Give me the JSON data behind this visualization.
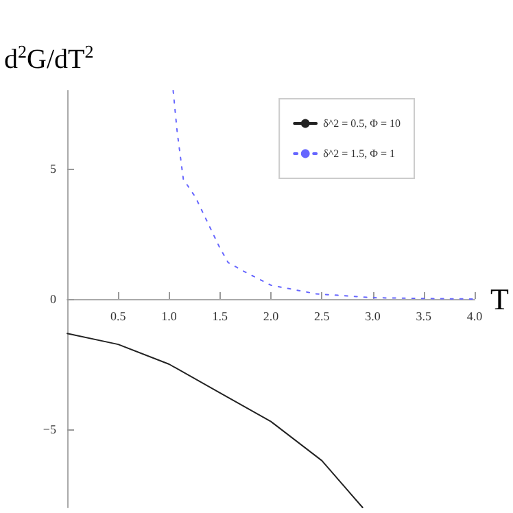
{
  "chart_data": {
    "type": "line",
    "xlabel": "T",
    "ylabel": "d$^{2}$G/dT$^{2}$",
    "xlim": [
      0,
      4
    ],
    "ylim": [
      -8,
      8
    ],
    "xticks": [
      {
        "value": 0.5,
        "label": "0.5"
      },
      {
        "value": 1,
        "label": "1.0"
      },
      {
        "value": 1.5,
        "label": "1.5"
      },
      {
        "value": 2,
        "label": "2.0"
      },
      {
        "value": 2.5,
        "label": "2.5"
      },
      {
        "value": 3,
        "label": "3.0"
      },
      {
        "value": 3.5,
        "label": "3.5"
      },
      {
        "value": 4,
        "label": "4.0"
      }
    ],
    "yticks": [
      {
        "value": -5,
        "label": "−5"
      },
      0,
      5
    ],
    "legend": "top right",
    "grid": false,
    "series": [
      {
        "name": "δ^2 = 0.5, Φ = 10",
        "color": "#222222",
        "line_style": "solid",
        "x": [
          0.0,
          0.5,
          1.0,
          1.5,
          2.0,
          2.5,
          2.9
        ],
        "values": [
          -1.32,
          -1.74,
          -2.5,
          -3.6,
          -4.7,
          -6.2,
          -8.0
        ]
      },
      {
        "name": "δ^2 = 1.5, Φ = 1",
        "color": "#6666ff",
        "line_style": "dotted",
        "x": [
          1.04,
          1.08,
          1.14,
          1.26,
          1.5,
          1.58,
          1.74,
          2.0,
          2.44,
          3.0,
          3.5,
          4.0
        ],
        "values": [
          8.0,
          6.4,
          4.6,
          3.9,
          1.95,
          1.4,
          1.05,
          0.53,
          0.2,
          0.05,
          0.02,
          0.0
        ]
      }
    ]
  }
}
